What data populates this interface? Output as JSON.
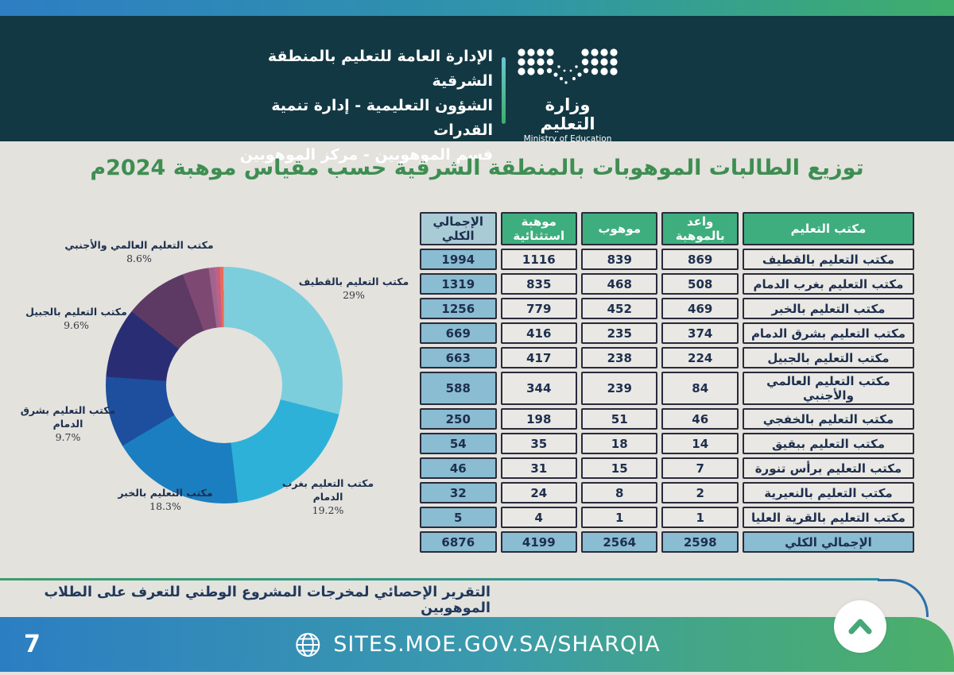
{
  "colors": {
    "strip-blue": "#2D7EC3",
    "strip-green": "#3FAE6C",
    "teal-header": "#123843",
    "page-bg": "#E3E2DD",
    "title-green": "#3E8E52",
    "th-green": "#3FAE7E",
    "cell-blue": "#8ABCD2",
    "cell-blue-light": "#A9CBD6",
    "cell-gray": "#E9E8E4",
    "text-navy": "#1E2F4D",
    "bar-blue": "#2C7EC2",
    "bar-green": "#4CAF6A",
    "chevron-green": "#45A878"
  },
  "header": {
    "line1": "الإدارة العامة للتعليم بالمنطقة الشرقية",
    "line2": "الشؤون التعليمية - إدارة تنمية القدرات",
    "line3": "قسم الموهوبين - مركز الموهوبين",
    "logo_title": "وزارة التعليم",
    "logo_subtitle": "Ministry of Education"
  },
  "title": "توزيع الطالبات الموهوبات بالمنطقة الشرقية حسب مقياس موهبة 2024م",
  "chart_data": {
    "type": "pie",
    "donut": true,
    "title": "توزيع الطالبات الموهوبات بالمنطقة الشرقية حسب مقياس موهبة 2024م",
    "start_angle_deg": 0,
    "direction": "clockwise",
    "segments": [
      {
        "label": "مكتب التعليم بالقطيف",
        "value": 1994,
        "pct": 29.0,
        "color": "#7CCEDC"
      },
      {
        "label": "مكتب التعليم بغرب الدمام",
        "value": 1319,
        "pct": 19.2,
        "color": "#2EB1D8"
      },
      {
        "label": "مكتب التعليم بالخبر",
        "value": 1256,
        "pct": 18.3,
        "color": "#1B7EC0"
      },
      {
        "label": "مكتب التعليم بشرق الدمام",
        "value": 669,
        "pct": 9.7,
        "color": "#1D4F9E"
      },
      {
        "label": "مكتب التعليم بالجبيل",
        "value": 663,
        "pct": 9.6,
        "color": "#292E74"
      },
      {
        "label": "مكتب التعليم العالمي والأجنبي",
        "value": 588,
        "pct": 8.6,
        "color": "#5D3A64"
      },
      {
        "label": "مكتب التعليم بالخفجي",
        "value": 250,
        "pct": 3.6,
        "color": "#7D4972"
      },
      {
        "label": "مكتب التعليم ببقيق",
        "value": 54,
        "pct": 0.8,
        "color": "#A2638F"
      },
      {
        "label": "مكتب التعليم برأس تنورة",
        "value": 46,
        "pct": 0.7,
        "color": "#C06087"
      },
      {
        "label": "مكتب التعليم بالنعيرية",
        "value": 32,
        "pct": 0.5,
        "color": "#ED6A55"
      },
      {
        "label": "مكتب التعليم بالقرية العليا",
        "value": 5,
        "pct": 0.1,
        "color": "#F49B8E"
      }
    ],
    "callouts": [
      {
        "name": "مكتب التعليم بالقطيف",
        "pct_text": "29%"
      },
      {
        "name": "مكتب التعليم بغرب الدمام",
        "pct_text": "19.2%"
      },
      {
        "name": "مكتب التعليم بالخبر",
        "pct_text": "18.3%"
      },
      {
        "name": "مكتب التعليم بشرق الدمام",
        "pct_text": "9.7%"
      },
      {
        "name": "مكتب التعليم بالجبيل",
        "pct_text": "9.6%"
      },
      {
        "name": "مكتب التعليم العالمي والأجنبي",
        "pct_text": "8.6%"
      }
    ]
  },
  "table": {
    "headers": [
      "مكتب التعليم",
      "واعد بالموهبة",
      "موهوب",
      "موهبة استثنائية",
      "الإجمالي الكلي"
    ],
    "rows": [
      {
        "office": "مكتب التعليم بالقطيف",
        "promising": 869,
        "gifted": 839,
        "exceptional": 1116,
        "total": 1994
      },
      {
        "office": "مكتب التعليم بغرب الدمام",
        "promising": 508,
        "gifted": 468,
        "exceptional": 835,
        "total": 1319
      },
      {
        "office": "مكتب التعليم بالخبر",
        "promising": 469,
        "gifted": 452,
        "exceptional": 779,
        "total": 1256
      },
      {
        "office": "مكتب التعليم بشرق الدمام",
        "promising": 374,
        "gifted": 235,
        "exceptional": 416,
        "total": 669
      },
      {
        "office": "مكتب التعليم بالجبيل",
        "promising": 224,
        "gifted": 238,
        "exceptional": 417,
        "total": 663
      },
      {
        "office": "مكتب التعليم العالمي والأجنبي",
        "promising": 84,
        "gifted": 239,
        "exceptional": 344,
        "total": 588
      },
      {
        "office": "مكتب التعليم بالخفجي",
        "promising": 46,
        "gifted": 51,
        "exceptional": 198,
        "total": 250
      },
      {
        "office": "مكتب التعليم ببقيق",
        "promising": 14,
        "gifted": 18,
        "exceptional": 35,
        "total": 54
      },
      {
        "office": "مكتب التعليم برأس تنورة",
        "promising": 7,
        "gifted": 15,
        "exceptional": 31,
        "total": 46
      },
      {
        "office": "مكتب التعليم بالنعيرية",
        "promising": 2,
        "gifted": 8,
        "exceptional": 24,
        "total": 32
      },
      {
        "office": "مكتب التعليم بالقرية العليا",
        "promising": 1,
        "gifted": 1,
        "exceptional": 4,
        "total": 5
      }
    ],
    "total_row": {
      "office": "الإجمالي الكلي",
      "promising": 2598,
      "gifted": 2564,
      "exceptional": 4199,
      "total": 6876
    }
  },
  "footer": {
    "statement": "التقرير الإحصائي لمخرجات المشروع الوطني للتعرف على الطلاب الموهوبين",
    "url": "SITES.MOE.GOV.SA/SHARQIA",
    "page_number": "7"
  }
}
